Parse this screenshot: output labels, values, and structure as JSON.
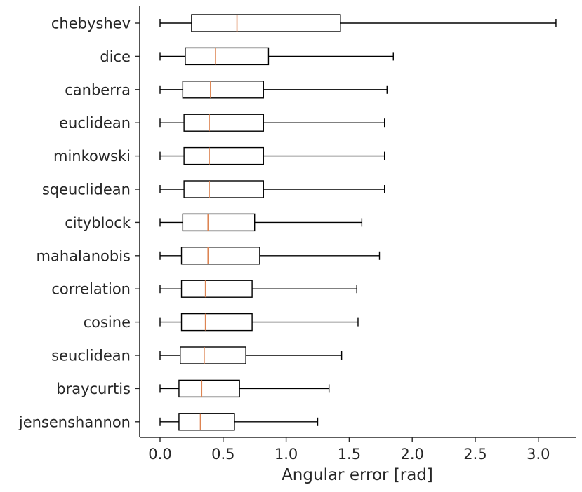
{
  "chart_data": {
    "type": "boxplot",
    "orientation": "horizontal",
    "title": "",
    "xlabel": "Angular error [rad]",
    "ylabel": "",
    "xlim": [
      -0.16,
      3.3
    ],
    "xticks": [
      0.0,
      0.5,
      1.0,
      1.5,
      2.0,
      2.5,
      3.0
    ],
    "xtick_labels": [
      "0.0",
      "0.5",
      "1.0",
      "1.5",
      "2.0",
      "2.5",
      "3.0"
    ],
    "grid": false,
    "colors": {
      "box": "#000000",
      "median": "#dd8452",
      "whisker": "#000000"
    },
    "categories": [
      "chebyshev",
      "dice",
      "canberra",
      "euclidean",
      "minkowski",
      "sqeuclidean",
      "cityblock",
      "mahalanobis",
      "correlation",
      "cosine",
      "seuclidean",
      "braycurtis",
      "jensenshannon"
    ],
    "boxes": [
      {
        "label": "chebyshev",
        "whislo": 0.0,
        "q1": 0.25,
        "med": 0.61,
        "q3": 1.43,
        "whishi": 3.14
      },
      {
        "label": "dice",
        "whislo": 0.0,
        "q1": 0.2,
        "med": 0.44,
        "q3": 0.86,
        "whishi": 1.85
      },
      {
        "label": "canberra",
        "whislo": 0.0,
        "q1": 0.18,
        "med": 0.4,
        "q3": 0.82,
        "whishi": 1.8
      },
      {
        "label": "euclidean",
        "whislo": 0.0,
        "q1": 0.19,
        "med": 0.39,
        "q3": 0.82,
        "whishi": 1.78
      },
      {
        "label": "minkowski",
        "whislo": 0.0,
        "q1": 0.19,
        "med": 0.39,
        "q3": 0.82,
        "whishi": 1.78
      },
      {
        "label": "sqeuclidean",
        "whislo": 0.0,
        "q1": 0.19,
        "med": 0.39,
        "q3": 0.82,
        "whishi": 1.78
      },
      {
        "label": "cityblock",
        "whislo": 0.0,
        "q1": 0.18,
        "med": 0.38,
        "q3": 0.75,
        "whishi": 1.6
      },
      {
        "label": "mahalanobis",
        "whislo": 0.0,
        "q1": 0.17,
        "med": 0.38,
        "q3": 0.79,
        "whishi": 1.74
      },
      {
        "label": "correlation",
        "whislo": 0.0,
        "q1": 0.17,
        "med": 0.36,
        "q3": 0.73,
        "whishi": 1.56
      },
      {
        "label": "cosine",
        "whislo": 0.0,
        "q1": 0.17,
        "med": 0.36,
        "q3": 0.73,
        "whishi": 1.57
      },
      {
        "label": "seuclidean",
        "whislo": 0.0,
        "q1": 0.16,
        "med": 0.35,
        "q3": 0.68,
        "whishi": 1.44
      },
      {
        "label": "braycurtis",
        "whislo": 0.0,
        "q1": 0.15,
        "med": 0.33,
        "q3": 0.63,
        "whishi": 1.34
      },
      {
        "label": "jensenshannon",
        "whislo": 0.0,
        "q1": 0.15,
        "med": 0.32,
        "q3": 0.59,
        "whishi": 1.25
      }
    ]
  }
}
